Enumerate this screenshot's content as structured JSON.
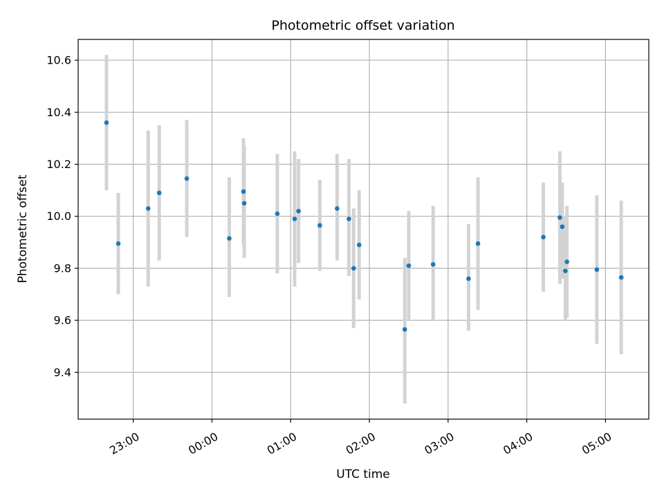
{
  "chart_data": {
    "type": "scatter",
    "title": "Photometric offset variation",
    "xlabel": "UTC time",
    "ylabel": "Photometric offset",
    "grid": true,
    "x_unit": "UTC time (hours; values above 24 are after midnight)",
    "xlim": [
      22.3,
      29.55
    ],
    "ylim": [
      9.22,
      10.68
    ],
    "x_ticks": [
      {
        "value": 23,
        "label": "23:00"
      },
      {
        "value": 24,
        "label": "00:00"
      },
      {
        "value": 25,
        "label": "01:00"
      },
      {
        "value": 26,
        "label": "02:00"
      },
      {
        "value": 27,
        "label": "03:00"
      },
      {
        "value": 28,
        "label": "04:00"
      },
      {
        "value": 29,
        "label": "05:00"
      }
    ],
    "y_ticks": [
      {
        "value": 9.4,
        "label": "9.4"
      },
      {
        "value": 9.6,
        "label": "9.6"
      },
      {
        "value": 9.8,
        "label": "9.8"
      },
      {
        "value": 10.0,
        "label": "10.0"
      },
      {
        "value": 10.2,
        "label": "10.2"
      },
      {
        "value": 10.4,
        "label": "10.4"
      },
      {
        "value": 10.6,
        "label": "10.6"
      }
    ],
    "point_color": "#1f77b4",
    "errorbar_color": "#d3d3d3",
    "points": [
      {
        "x": 22.66,
        "y": 10.36,
        "lo": 10.1,
        "hi": 10.62
      },
      {
        "x": 22.81,
        "y": 9.895,
        "lo": 9.7,
        "hi": 10.09
      },
      {
        "x": 23.19,
        "y": 10.03,
        "lo": 9.73,
        "hi": 10.33
      },
      {
        "x": 23.33,
        "y": 10.09,
        "lo": 9.83,
        "hi": 10.35
      },
      {
        "x": 23.68,
        "y": 10.145,
        "lo": 9.92,
        "hi": 10.37
      },
      {
        "x": 24.22,
        "y": 9.915,
        "lo": 9.69,
        "hi": 10.15
      },
      {
        "x": 24.4,
        "y": 10.095,
        "lo": 9.89,
        "hi": 10.3
      },
      {
        "x": 24.41,
        "y": 10.05,
        "lo": 9.84,
        "hi": 10.27
      },
      {
        "x": 24.83,
        "y": 10.01,
        "lo": 9.78,
        "hi": 10.24
      },
      {
        "x": 25.05,
        "y": 9.99,
        "lo": 9.73,
        "hi": 10.25
      },
      {
        "x": 25.1,
        "y": 10.02,
        "lo": 9.82,
        "hi": 10.22
      },
      {
        "x": 25.37,
        "y": 9.965,
        "lo": 9.79,
        "hi": 10.14
      },
      {
        "x": 25.59,
        "y": 10.03,
        "lo": 9.83,
        "hi": 10.24
      },
      {
        "x": 25.74,
        "y": 9.99,
        "lo": 9.77,
        "hi": 10.22
      },
      {
        "x": 25.8,
        "y": 9.8,
        "lo": 9.57,
        "hi": 10.03
      },
      {
        "x": 25.87,
        "y": 9.89,
        "lo": 9.68,
        "hi": 10.1
      },
      {
        "x": 26.45,
        "y": 9.565,
        "lo": 9.28,
        "hi": 9.84
      },
      {
        "x": 26.5,
        "y": 9.81,
        "lo": 9.6,
        "hi": 10.02
      },
      {
        "x": 26.81,
        "y": 9.815,
        "lo": 9.6,
        "hi": 10.04
      },
      {
        "x": 27.26,
        "y": 9.76,
        "lo": 9.56,
        "hi": 9.97
      },
      {
        "x": 27.38,
        "y": 9.895,
        "lo": 9.64,
        "hi": 10.15
      },
      {
        "x": 28.21,
        "y": 9.92,
        "lo": 9.71,
        "hi": 10.13
      },
      {
        "x": 28.42,
        "y": 9.995,
        "lo": 9.74,
        "hi": 10.25
      },
      {
        "x": 28.45,
        "y": 9.96,
        "lo": 9.76,
        "hi": 10.13
      },
      {
        "x": 28.49,
        "y": 9.79,
        "lo": 9.6,
        "hi": 10.0
      },
      {
        "x": 28.51,
        "y": 9.825,
        "lo": 9.61,
        "hi": 10.04
      },
      {
        "x": 28.89,
        "y": 9.795,
        "lo": 9.51,
        "hi": 10.08
      },
      {
        "x": 29.2,
        "y": 9.765,
        "lo": 9.47,
        "hi": 10.06
      }
    ]
  }
}
